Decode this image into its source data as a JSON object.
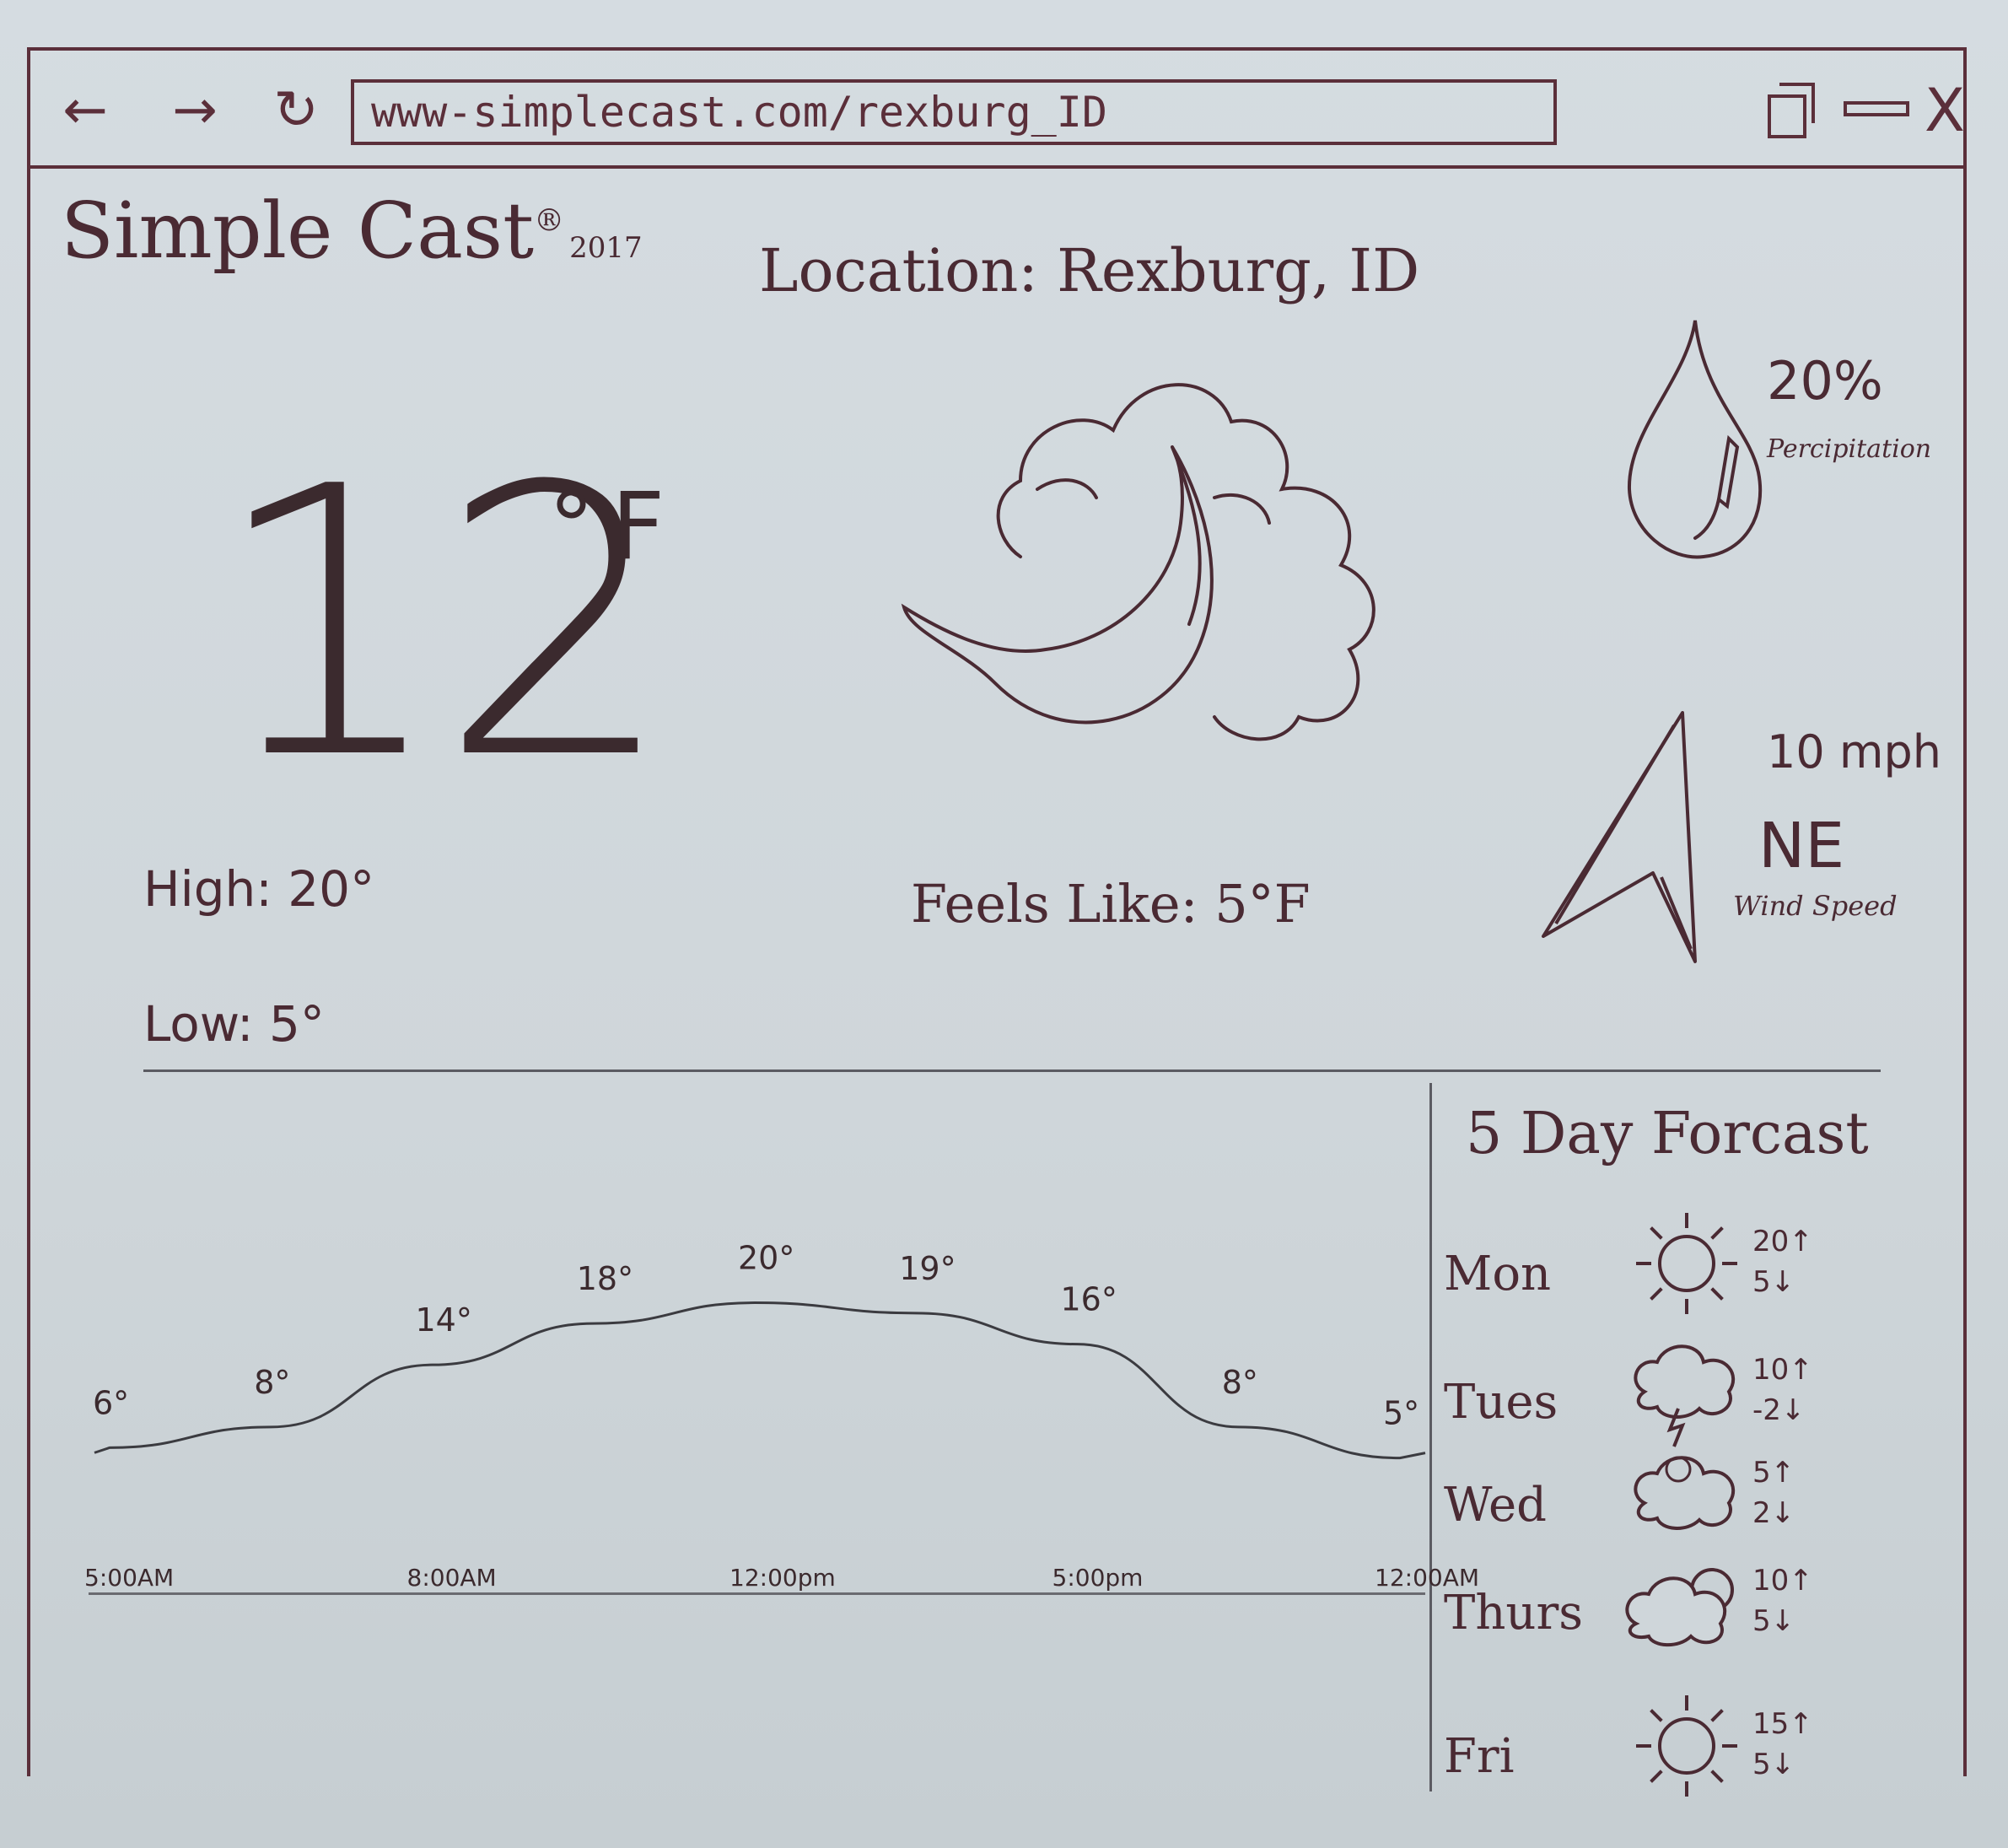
{
  "browser": {
    "back_icon": "←",
    "forward_icon": "→",
    "refresh_icon": "↻",
    "url": "www-simplecast.com/rexburg_ID",
    "close_icon": "X"
  },
  "header": {
    "logo": "Simple Cast",
    "logo_reg": "®",
    "logo_year": "2017",
    "location": "Location: Rexburg, ID"
  },
  "current": {
    "temp": "12",
    "unit": "°F",
    "high": "High: 20°",
    "low": "Low: 5°",
    "feels_like": "Feels Like: 5°F",
    "condition_icon": "moon-cloud-icon",
    "precip_value": "20%",
    "precip_label": "Percipitation",
    "wind_speed": "10 mph",
    "wind_dir": "NE",
    "wind_label": "Wind Speed"
  },
  "colors": {
    "ink": "#4a2a33",
    "frame": "#5b2f3a",
    "paper": "#d2d9dd"
  },
  "chart_data": {
    "type": "line",
    "x": [
      "5:00AM",
      "",
      "8:00AM",
      "",
      "12:00pm",
      "",
      "5:00pm",
      "",
      "12:00AM"
    ],
    "series": [
      {
        "values": [
          6,
          8,
          14,
          18,
          20,
          19,
          16,
          8,
          5
        ]
      }
    ],
    "data_labels": [
      "6°",
      "8°",
      "14°",
      "18°",
      "20°",
      "19°",
      "16°",
      "8°",
      "5°"
    ],
    "ylim": [
      0,
      22
    ]
  },
  "forecast": {
    "title": "5 Day Forcast",
    "days": [
      {
        "day": "Mon",
        "icon": "sun-icon",
        "hi": "20↑",
        "lo": "5↓"
      },
      {
        "day": "Tues",
        "icon": "storm-cloud-icon",
        "hi": "10↑",
        "lo": "-2↓"
      },
      {
        "day": "Wed",
        "icon": "snow-cloud-icon",
        "hi": "5↑",
        "lo": "2↓"
      },
      {
        "day": "Thurs",
        "icon": "partly-cloudy-icon",
        "hi": "10↑",
        "lo": "5↓"
      },
      {
        "day": "Fri",
        "icon": "sun-icon",
        "hi": "15↑",
        "lo": "5↓"
      }
    ]
  }
}
